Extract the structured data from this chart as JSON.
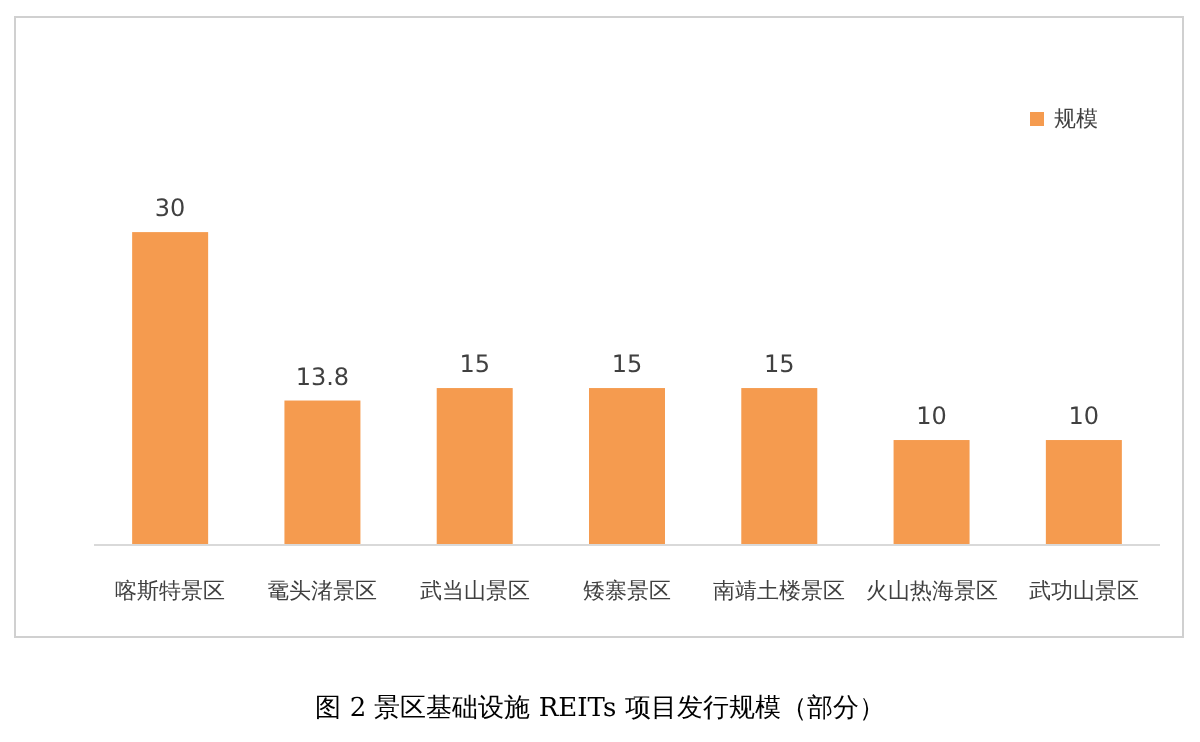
{
  "chart_data": {
    "type": "bar",
    "title": "图 2  景区基础设施 REITs 项目发行规模（部分）",
    "categories": [
      "喀斯特景区",
      "鼋头渚景区",
      "武当山景区",
      "矮寨景区",
      "南靖土楼景区",
      "火山热海景区",
      "武功山景区"
    ],
    "series": [
      {
        "name": "规模",
        "color": "#f59b4f",
        "values": [
          30,
          13.8,
          15,
          15,
          15,
          10,
          10
        ]
      }
    ],
    "data_labels": true,
    "legend": "top right"
  }
}
